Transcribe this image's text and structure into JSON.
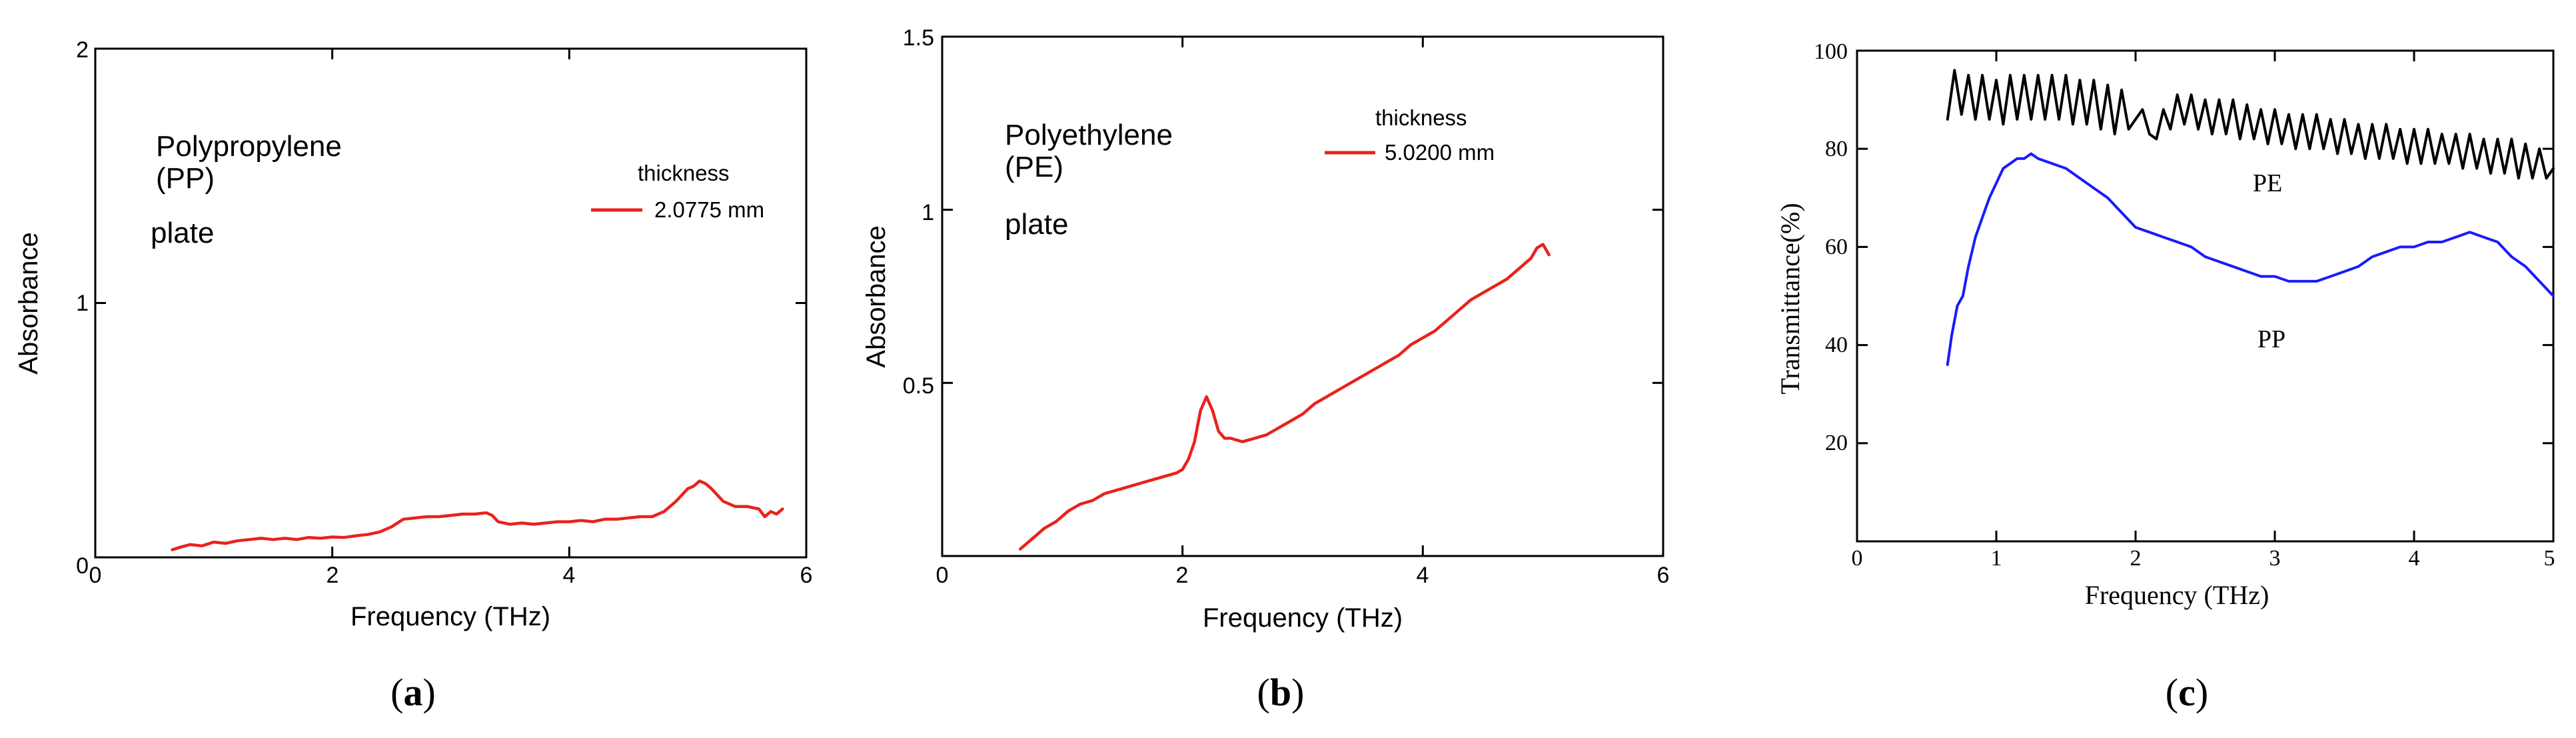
{
  "chart_data": [
    {
      "type": "line",
      "panel_label": "a",
      "xlabel": "Frequency (THz)",
      "ylabel": "Absorbance",
      "xlim": [
        0,
        6
      ],
      "ylim": [
        0,
        2
      ],
      "xticks": [
        0,
        2,
        4,
        6
      ],
      "yticks": [
        0,
        1,
        2
      ],
      "annotation_lines": [
        "Polypropylene",
        "(PP)",
        "plate"
      ],
      "legend_title": "thickness",
      "series": [
        {
          "name": "2.0775 mm",
          "color": "#e8231b",
          "x": [
            0.65,
            0.72,
            0.8,
            0.9,
            1.0,
            1.1,
            1.2,
            1.3,
            1.4,
            1.5,
            1.6,
            1.7,
            1.8,
            1.9,
            2.0,
            2.1,
            2.2,
            2.3,
            2.4,
            2.5,
            2.6,
            2.7,
            2.8,
            2.9,
            3.0,
            3.1,
            3.2,
            3.3,
            3.35,
            3.4,
            3.5,
            3.6,
            3.7,
            3.8,
            3.9,
            4.0,
            4.1,
            4.2,
            4.3,
            4.4,
            4.5,
            4.6,
            4.7,
            4.8,
            4.9,
            5.0,
            5.05,
            5.1,
            5.15,
            5.2,
            5.3,
            5.4,
            5.5,
            5.6,
            5.65,
            5.7,
            5.75,
            5.8
          ],
          "y": [
            0.03,
            0.04,
            0.05,
            0.045,
            0.06,
            0.055,
            0.065,
            0.07,
            0.075,
            0.07,
            0.075,
            0.07,
            0.078,
            0.075,
            0.08,
            0.078,
            0.085,
            0.09,
            0.1,
            0.12,
            0.15,
            0.155,
            0.16,
            0.16,
            0.165,
            0.17,
            0.17,
            0.175,
            0.165,
            0.14,
            0.13,
            0.135,
            0.13,
            0.135,
            0.14,
            0.14,
            0.145,
            0.14,
            0.15,
            0.15,
            0.155,
            0.16,
            0.16,
            0.18,
            0.22,
            0.27,
            0.28,
            0.3,
            0.29,
            0.27,
            0.22,
            0.2,
            0.2,
            0.19,
            0.16,
            0.18,
            0.17,
            0.19
          ]
        }
      ]
    },
    {
      "type": "line",
      "panel_label": "b",
      "xlabel": "Frequency (THz)",
      "ylabel": "Absorbance",
      "xlim": [
        0,
        6
      ],
      "ylim": [
        0,
        1.5
      ],
      "xticks": [
        0,
        2,
        4,
        6
      ],
      "yticks": [
        0.5,
        1,
        1.5
      ],
      "annotation_lines": [
        "Polyethylene",
        "(PE)",
        "plate"
      ],
      "legend_title": "thickness",
      "series": [
        {
          "name": "5.0200 mm",
          "color": "#e8231b",
          "x": [
            0.65,
            0.75,
            0.85,
            0.95,
            1.05,
            1.15,
            1.25,
            1.35,
            1.45,
            1.55,
            1.65,
            1.75,
            1.85,
            1.95,
            2.0,
            2.05,
            2.1,
            2.15,
            2.2,
            2.25,
            2.3,
            2.35,
            2.4,
            2.5,
            2.6,
            2.7,
            2.8,
            2.9,
            3.0,
            3.1,
            3.2,
            3.3,
            3.4,
            3.5,
            3.6,
            3.7,
            3.8,
            3.9,
            4.0,
            4.1,
            4.2,
            4.3,
            4.4,
            4.5,
            4.6,
            4.7,
            4.8,
            4.9,
            4.95,
            5.0,
            5.05
          ],
          "y": [
            0.02,
            0.05,
            0.08,
            0.1,
            0.13,
            0.15,
            0.16,
            0.18,
            0.19,
            0.2,
            0.21,
            0.22,
            0.23,
            0.24,
            0.25,
            0.28,
            0.33,
            0.42,
            0.46,
            0.42,
            0.36,
            0.34,
            0.34,
            0.33,
            0.34,
            0.35,
            0.37,
            0.39,
            0.41,
            0.44,
            0.46,
            0.48,
            0.5,
            0.52,
            0.54,
            0.56,
            0.58,
            0.61,
            0.63,
            0.65,
            0.68,
            0.71,
            0.74,
            0.76,
            0.78,
            0.8,
            0.83,
            0.86,
            0.89,
            0.9,
            0.87
          ]
        }
      ]
    },
    {
      "type": "line",
      "panel_label": "c",
      "xlabel": "Frequency (THz)",
      "ylabel": "Transmittance(%)",
      "xlim": [
        0,
        5
      ],
      "ylim": [
        0,
        100
      ],
      "xticks": [
        0,
        1,
        2,
        3,
        4,
        5
      ],
      "yticks": [
        20,
        40,
        60,
        80,
        100
      ],
      "series": [
        {
          "name": "PE",
          "color": "#000000",
          "x": [
            0.65,
            0.7,
            0.75,
            0.8,
            0.85,
            0.9,
            0.95,
            1.0,
            1.05,
            1.1,
            1.15,
            1.2,
            1.25,
            1.3,
            1.35,
            1.4,
            1.45,
            1.5,
            1.55,
            1.6,
            1.65,
            1.7,
            1.75,
            1.8,
            1.85,
            1.9,
            1.95,
            2.0,
            2.05,
            2.1,
            2.15,
            2.2,
            2.25,
            2.3,
            2.35,
            2.4,
            2.45,
            2.5,
            2.55,
            2.6,
            2.65,
            2.7,
            2.75,
            2.8,
            2.85,
            2.9,
            2.95,
            3.0,
            3.05,
            3.1,
            3.15,
            3.2,
            3.25,
            3.3,
            3.35,
            3.4,
            3.45,
            3.5,
            3.55,
            3.6,
            3.65,
            3.7,
            3.75,
            3.8,
            3.85,
            3.9,
            3.95,
            4.0,
            4.05,
            4.1,
            4.15,
            4.2,
            4.25,
            4.3,
            4.35,
            4.4,
            4.45,
            4.5,
            4.55,
            4.6,
            4.65,
            4.7,
            4.75,
            4.8,
            4.85,
            4.9,
            4.95,
            5.0
          ],
          "y": [
            86,
            96,
            87,
            95,
            86,
            95,
            86,
            94,
            85,
            95,
            86,
            95,
            86,
            95,
            86,
            95,
            86,
            95,
            85,
            94,
            85,
            94,
            84,
            93,
            83,
            92,
            84,
            86,
            88,
            83,
            82,
            88,
            84,
            91,
            85,
            91,
            84,
            90,
            83,
            90,
            83,
            90,
            82,
            89,
            82,
            88,
            81,
            88,
            81,
            87,
            80,
            87,
            80,
            87,
            80,
            86,
            79,
            86,
            79,
            85,
            78,
            85,
            78,
            85,
            78,
            84,
            77,
            84,
            77,
            84,
            77,
            83,
            77,
            83,
            76,
            83,
            76,
            82,
            75,
            82,
            75,
            82,
            74,
            81,
            74,
            80,
            74,
            76
          ]
        },
        {
          "name": "PP",
          "color": "#1a1aff",
          "x": [
            0.65,
            0.68,
            0.72,
            0.76,
            0.8,
            0.85,
            0.9,
            0.95,
            1.0,
            1.05,
            1.1,
            1.15,
            1.2,
            1.25,
            1.3,
            1.4,
            1.5,
            1.6,
            1.7,
            1.8,
            1.9,
            2.0,
            2.1,
            2.2,
            2.3,
            2.4,
            2.5,
            2.6,
            2.7,
            2.8,
            2.9,
            3.0,
            3.1,
            3.2,
            3.3,
            3.4,
            3.5,
            3.6,
            3.7,
            3.8,
            3.9,
            4.0,
            4.1,
            4.2,
            4.3,
            4.4,
            4.5,
            4.6,
            4.7,
            4.8,
            4.9,
            5.0
          ],
          "y": [
            36,
            42,
            48,
            50,
            56,
            62,
            66,
            70,
            73,
            76,
            77,
            78,
            78,
            79,
            78,
            77,
            76,
            74,
            72,
            70,
            67,
            64,
            63,
            62,
            61,
            60,
            58,
            57,
            56,
            55,
            54,
            54,
            53,
            53,
            53,
            54,
            55,
            56,
            58,
            59,
            60,
            60,
            61,
            61,
            62,
            63,
            62,
            61,
            58,
            56,
            53,
            50
          ]
        }
      ]
    }
  ]
}
